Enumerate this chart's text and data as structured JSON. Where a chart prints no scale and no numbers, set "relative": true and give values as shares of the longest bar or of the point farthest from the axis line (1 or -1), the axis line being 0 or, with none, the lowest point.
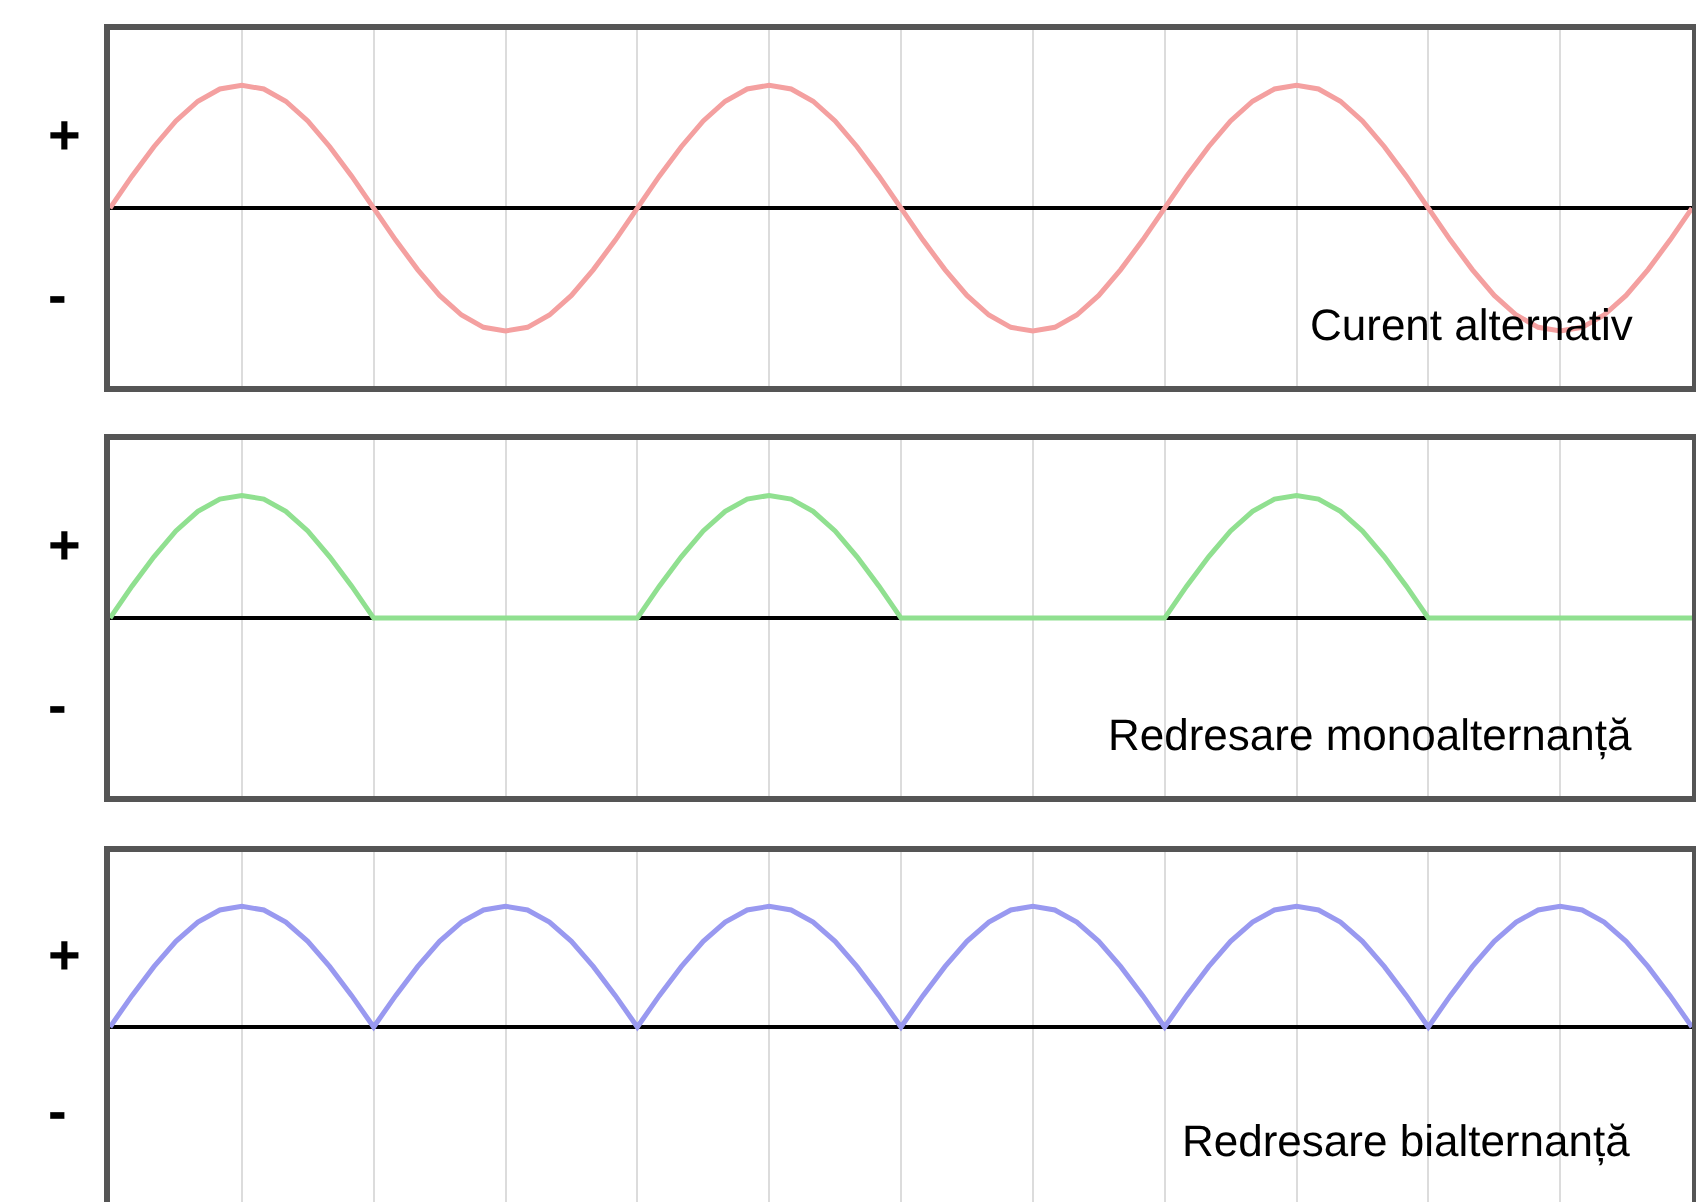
{
  "chart_data": [
    {
      "type": "line",
      "relative": true,
      "grid": "x",
      "categories": [
        null,
        null,
        null,
        null,
        null,
        null,
        null,
        null,
        null,
        null,
        null,
        null,
        null,
        null,
        null,
        null,
        null,
        null,
        null,
        null,
        null,
        null,
        null,
        null,
        null,
        null,
        null,
        null,
        null,
        null,
        null,
        null,
        null,
        null,
        null,
        null,
        null,
        null,
        null,
        null,
        null,
        null,
        null,
        null,
        null,
        null,
        null,
        null,
        null,
        null,
        null,
        null,
        null,
        null,
        null,
        null,
        null,
        null,
        null,
        null,
        null,
        null,
        null,
        null,
        null,
        null,
        null,
        null,
        null,
        null,
        null,
        null,
        null
      ],
      "series": [
        {
          "color": "#f4a0a0",
          "values": [
            0,
            0.26,
            0.5,
            0.71,
            0.87,
            0.97,
            1,
            0.97,
            0.87,
            0.71,
            0.5,
            0.26,
            0,
            -0.26,
            -0.5,
            -0.71,
            -0.87,
            -0.97,
            -1,
            -0.97,
            -0.87,
            -0.71,
            -0.5,
            -0.26,
            0,
            0.26,
            0.5,
            0.71,
            0.87,
            0.97,
            1,
            0.97,
            0.87,
            0.71,
            0.5,
            0.26,
            0,
            -0.26,
            -0.5,
            -0.71,
            -0.87,
            -0.97,
            -1,
            -0.97,
            -0.87,
            -0.71,
            -0.5,
            -0.26,
            0,
            0.26,
            0.5,
            0.71,
            0.87,
            0.97,
            1,
            0.97,
            0.87,
            0.71,
            0.5,
            0.26,
            0,
            -0.26,
            -0.5,
            -0.71,
            -0.87,
            -0.97,
            -1,
            -0.97,
            -0.87,
            -0.71,
            -0.5,
            -0.26,
            0
          ]
        }
      ],
      "annotations": [
        "+",
        "-",
        "Curent alternativ"
      ]
    },
    {
      "type": "line",
      "relative": true,
      "grid": "x",
      "categories": [
        null,
        null,
        null,
        null,
        null,
        null,
        null,
        null,
        null,
        null,
        null,
        null,
        null,
        null,
        null,
        null,
        null,
        null,
        null,
        null,
        null,
        null,
        null,
        null,
        null,
        null,
        null,
        null,
        null,
        null,
        null,
        null,
        null,
        null,
        null,
        null,
        null,
        null,
        null,
        null,
        null,
        null,
        null,
        null,
        null,
        null,
        null,
        null,
        null,
        null,
        null,
        null,
        null,
        null,
        null,
        null,
        null,
        null,
        null,
        null,
        null,
        null,
        null,
        null,
        null,
        null,
        null,
        null,
        null,
        null,
        null,
        null,
        null
      ],
      "series": [
        {
          "color": "#90e090",
          "values": [
            0,
            0.26,
            0.5,
            0.71,
            0.87,
            0.97,
            1,
            0.97,
            0.87,
            0.71,
            0.5,
            0.26,
            0,
            0,
            0,
            0,
            0,
            0,
            0,
            0,
            0,
            0,
            0,
            0,
            0,
            0.26,
            0.5,
            0.71,
            0.87,
            0.97,
            1,
            0.97,
            0.87,
            0.71,
            0.5,
            0.26,
            0,
            0,
            0,
            0,
            0,
            0,
            0,
            0,
            0,
            0,
            0,
            0,
            0,
            0.26,
            0.5,
            0.71,
            0.87,
            0.97,
            1,
            0.97,
            0.87,
            0.71,
            0.5,
            0.26,
            0,
            0,
            0,
            0,
            0,
            0,
            0,
            0,
            0,
            0,
            0,
            0,
            0
          ]
        }
      ],
      "annotations": [
        "+",
        "-",
        "Redresare monoalternanță"
      ]
    },
    {
      "type": "line",
      "relative": true,
      "grid": "x",
      "categories": [
        null,
        null,
        null,
        null,
        null,
        null,
        null,
        null,
        null,
        null,
        null,
        null,
        null,
        null,
        null,
        null,
        null,
        null,
        null,
        null,
        null,
        null,
        null,
        null,
        null,
        null,
        null,
        null,
        null,
        null,
        null,
        null,
        null,
        null,
        null,
        null,
        null,
        null,
        null,
        null,
        null,
        null,
        null,
        null,
        null,
        null,
        null,
        null,
        null,
        null,
        null,
        null,
        null,
        null,
        null,
        null,
        null,
        null,
        null,
        null,
        null,
        null,
        null,
        null,
        null,
        null,
        null,
        null,
        null,
        null,
        null,
        null,
        null
      ],
      "series": [
        {
          "color": "#9999f0",
          "values": [
            0,
            0.26,
            0.5,
            0.71,
            0.87,
            0.97,
            1,
            0.97,
            0.87,
            0.71,
            0.5,
            0.26,
            0,
            0.26,
            0.5,
            0.71,
            0.87,
            0.97,
            1,
            0.97,
            0.87,
            0.71,
            0.5,
            0.26,
            0,
            0.26,
            0.5,
            0.71,
            0.87,
            0.97,
            1,
            0.97,
            0.87,
            0.71,
            0.5,
            0.26,
            0,
            0.26,
            0.5,
            0.71,
            0.87,
            0.97,
            1,
            0.97,
            0.87,
            0.71,
            0.5,
            0.26,
            0,
            0.26,
            0.5,
            0.71,
            0.87,
            0.97,
            1,
            0.97,
            0.87,
            0.71,
            0.5,
            0.26,
            0,
            0.26,
            0.5,
            0.71,
            0.87,
            0.97,
            1,
            0.97,
            0.87,
            0.71,
            0.5,
            0.26,
            0
          ]
        }
      ],
      "annotations": [
        "+",
        "-",
        "Redresare bialternanță"
      ]
    }
  ]
}
